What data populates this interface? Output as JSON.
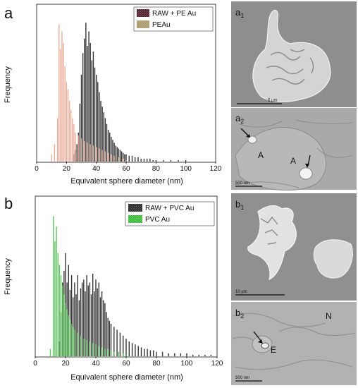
{
  "panels": [
    {
      "label": "a",
      "ylabel": "Frequency",
      "xlabel": "Equivalent sphere diameter (nm)",
      "legend": [
        {
          "name": "RAW + PE Au",
          "color": "#3a3a3a",
          "hatch": "#c05070"
        },
        {
          "name": "PEAu",
          "color": "#e8a088",
          "hatch": "#9aa060"
        }
      ],
      "images": [
        {
          "label": "a",
          "sub": "1",
          "scale": "5 µm"
        },
        {
          "label": "a",
          "sub": "2",
          "scale": "500 nm",
          "annotations": [
            "A",
            "A"
          ]
        }
      ]
    },
    {
      "label": "b",
      "ylabel": "Frequency",
      "xlabel": "Equivalent sphere diameter (nm)",
      "legend": [
        {
          "name": "RAW + PVC Au",
          "color": "#3a3a3a",
          "hatch": "#444444"
        },
        {
          "name": "PVC Au",
          "color": "#55cc55",
          "hatch": "#44aa44"
        }
      ],
      "images": [
        {
          "label": "b",
          "sub": "1",
          "scale": "10 µm"
        },
        {
          "label": "b",
          "sub": "2",
          "scale": "500 nm",
          "annotations": [
            "N",
            "E"
          ]
        }
      ]
    }
  ],
  "chart_data": [
    {
      "type": "bar",
      "xlabel": "Equivalent sphere diameter (nm)",
      "ylabel": "Frequency",
      "xlim": [
        0,
        120
      ],
      "xticks": [
        0,
        20,
        40,
        60,
        80,
        100,
        120
      ],
      "ylim": [
        0,
        1
      ],
      "legend_position": "top-right",
      "series": [
        {
          "name": "RAW + PE Au",
          "color": "#222222",
          "x": [
            25,
            26,
            27,
            28,
            29,
            30,
            31,
            32,
            33,
            34,
            35,
            36,
            37,
            38,
            39,
            40,
            41,
            42,
            43,
            44,
            45,
            46,
            47,
            48,
            49,
            50,
            51,
            52,
            53,
            54,
            55,
            56,
            57,
            58,
            59,
            60,
            62,
            64,
            66,
            68,
            70,
            72,
            74,
            76,
            78,
            80,
            85,
            90,
            95,
            100
          ],
          "values": [
            0.05,
            0.08,
            0.12,
            0.2,
            0.4,
            0.6,
            0.75,
            0.85,
            0.96,
            0.8,
            0.9,
            0.82,
            0.7,
            0.76,
            0.65,
            0.6,
            0.55,
            0.48,
            0.42,
            0.38,
            0.34,
            0.3,
            0.26,
            0.22,
            0.2,
            0.17,
            0.15,
            0.13,
            0.11,
            0.1,
            0.09,
            0.08,
            0.07,
            0.06,
            0.05,
            0.05,
            0.04,
            0.04,
            0.03,
            0.03,
            0.02,
            0.02,
            0.02,
            0.02,
            0.01,
            0.01,
            0.01,
            0.01,
            0.01,
            0.01
          ]
        },
        {
          "name": "PEAu",
          "color": "#e8a088",
          "x": [
            10,
            12,
            14,
            15,
            16,
            17,
            18,
            19,
            20,
            21,
            22,
            23,
            24,
            25,
            26,
            28,
            30,
            32,
            34,
            36,
            38,
            40,
            42,
            44,
            46,
            48,
            50,
            52,
            55,
            58,
            60
          ],
          "values": [
            0.05,
            0.12,
            0.3,
            0.95,
            0.78,
            0.9,
            0.82,
            0.66,
            0.55,
            0.5,
            0.42,
            0.36,
            0.3,
            0.26,
            0.2,
            0.18,
            0.16,
            0.14,
            0.13,
            0.12,
            0.11,
            0.1,
            0.09,
            0.08,
            0.07,
            0.06,
            0.05,
            0.04,
            0.03,
            0.02,
            0.01
          ]
        }
      ]
    },
    {
      "type": "bar",
      "xlabel": "Equivalent sphere diameter (nm)",
      "ylabel": "Frequency",
      "xlim": [
        0,
        120
      ],
      "xticks": [
        0,
        20,
        40,
        60,
        80,
        100,
        120
      ],
      "ylim": [
        0,
        1
      ],
      "legend_position": "top-right",
      "series": [
        {
          "name": "RAW + PVC Au",
          "color": "#222222",
          "x": [
            16,
            17,
            18,
            19,
            20,
            21,
            22,
            23,
            24,
            25,
            26,
            27,
            28,
            29,
            30,
            31,
            32,
            33,
            34,
            35,
            36,
            37,
            38,
            39,
            40,
            41,
            42,
            43,
            44,
            45,
            46,
            47,
            48,
            49,
            50,
            52,
            54,
            56,
            58,
            60,
            62,
            64,
            66,
            68,
            70,
            72,
            74,
            76,
            78,
            80,
            84,
            88,
            92,
            96,
            100,
            104,
            108,
            112,
            116
          ],
          "values": [
            0.1,
            0.3,
            0.5,
            0.58,
            0.7,
            0.5,
            0.62,
            0.45,
            0.55,
            0.4,
            0.5,
            0.42,
            0.55,
            0.38,
            0.46,
            0.5,
            0.52,
            0.44,
            0.55,
            0.48,
            0.5,
            0.42,
            0.56,
            0.44,
            0.52,
            0.46,
            0.5,
            0.4,
            0.44,
            0.38,
            0.36,
            0.3,
            0.26,
            0.24,
            0.22,
            0.2,
            0.18,
            0.16,
            0.14,
            0.12,
            0.1,
            0.09,
            0.08,
            0.07,
            0.06,
            0.05,
            0.05,
            0.04,
            0.04,
            0.03,
            0.03,
            0.02,
            0.02,
            0.02,
            0.02,
            0.01,
            0.01,
            0.01,
            0.01
          ]
        },
        {
          "name": "PVC Au",
          "color": "#44bb44",
          "x": [
            10,
            12,
            13,
            14,
            15,
            16,
            17,
            18,
            19,
            20,
            21,
            22,
            23,
            24,
            25,
            26,
            28,
            30,
            32,
            34,
            36,
            38,
            40,
            42,
            44,
            46,
            48,
            50,
            52,
            55,
            58,
            60
          ],
          "values": [
            0.05,
            0.95,
            0.78,
            0.88,
            0.7,
            0.62,
            0.55,
            0.48,
            0.42,
            0.36,
            0.32,
            0.28,
            0.25,
            0.22,
            0.2,
            0.18,
            0.16,
            0.14,
            0.12,
            0.11,
            0.1,
            0.09,
            0.08,
            0.07,
            0.06,
            0.05,
            0.05,
            0.04,
            0.03,
            0.03,
            0.02,
            0.01
          ]
        }
      ]
    }
  ]
}
